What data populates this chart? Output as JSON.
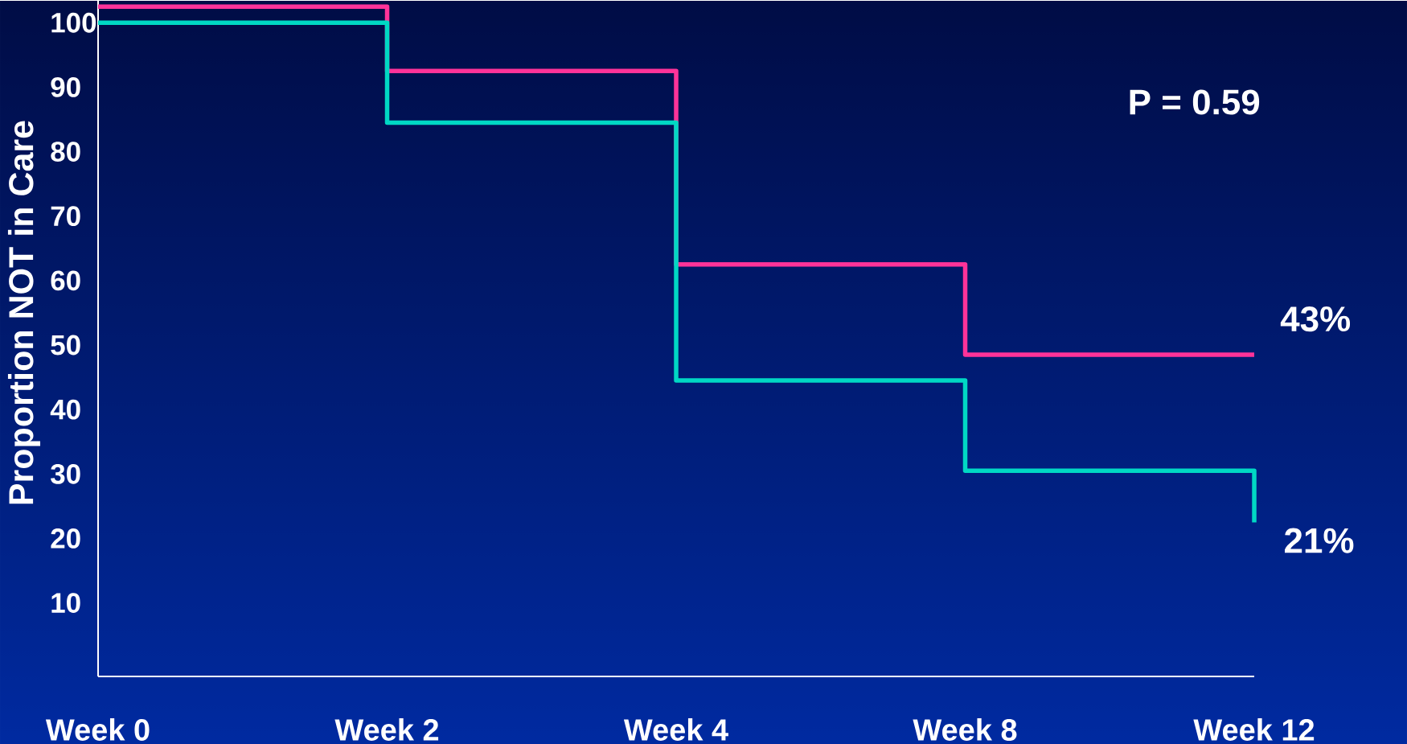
{
  "chart_data": {
    "type": "step",
    "ylabel": "Proportion NOT in Care",
    "categories": [
      "Week 0",
      "Week 2",
      "Week 4",
      "Week 8",
      "Week 12"
    ],
    "ylim": [
      -1.4,
      103.4
    ],
    "yticks": [
      10,
      20,
      30,
      40,
      50,
      60,
      70,
      80,
      90,
      100
    ],
    "series": [
      {
        "color": "#ff3399",
        "values": [
          102.5,
          92.5,
          62.5,
          48.5,
          48.5
        ]
      },
      {
        "color": "#00d8c4",
        "values": [
          100,
          84.5,
          44.5,
          30.5,
          22.5
        ]
      }
    ],
    "annotations": [
      "P = 0.59",
      "43%",
      "21%"
    ]
  }
}
